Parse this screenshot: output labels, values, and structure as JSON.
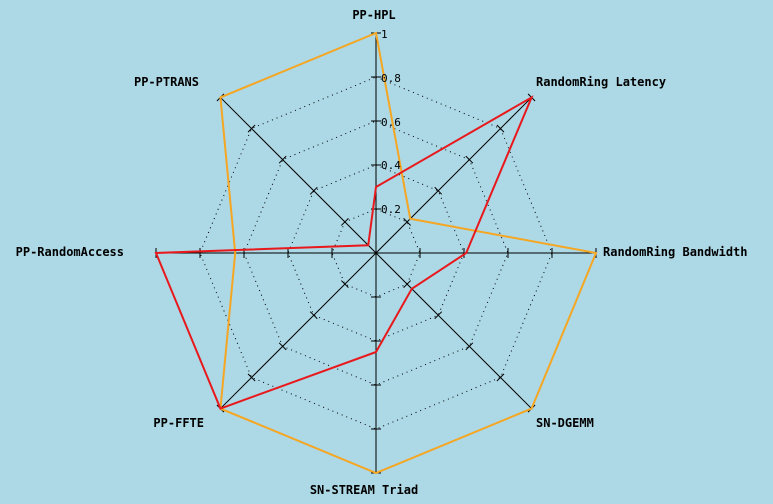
{
  "chart_data": {
    "type": "radar",
    "axes": [
      "PP-HPL",
      "RandomRing Latency",
      "RandomRing Bandwidth",
      "SN-DGEMM",
      "SN-STREAM Triad",
      "PP-FFTE",
      "PP-RandomAccess",
      "PP-PTRANS"
    ],
    "radial_ticks": [
      "0.2",
      "0.4",
      "0.6",
      "0.8",
      "1"
    ],
    "range": [
      0,
      1
    ],
    "grid": true,
    "grid_style": "dotted octagon",
    "series": [
      {
        "values": [
          0.3,
          1.0,
          0.41,
          0.23,
          0.45,
          1.0,
          1.0,
          0.05
        ],
        "color": "#e8191c"
      },
      {
        "values": [
          1.0,
          0.22,
          1.0,
          1.0,
          1.0,
          1.0,
          0.64,
          1.0
        ],
        "color": "#f5a623"
      }
    ]
  }
}
